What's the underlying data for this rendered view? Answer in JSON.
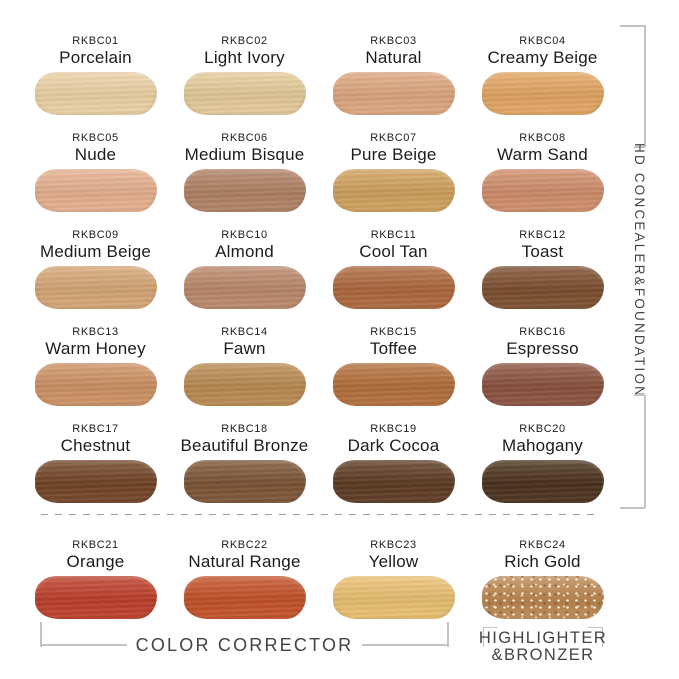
{
  "title_vertical": "HD CONCEALER&FOUNDATION",
  "groups": {
    "color_corrector": "COLOR CORRECTOR",
    "highlighter_line1": "HIGHLIGHTER",
    "highlighter_line2": "&BRONZER"
  },
  "swatches": [
    {
      "code": "RKBC01",
      "name": "Porcelain",
      "color": "#eed3a6",
      "group": "hd-concealer-foundation"
    },
    {
      "code": "RKBC02",
      "name": "Light Ivory",
      "color": "#e8cd9b",
      "group": "hd-concealer-foundation"
    },
    {
      "code": "RKBC03",
      "name": "Natural",
      "color": "#e0a87f",
      "group": "hd-concealer-foundation"
    },
    {
      "code": "RKBC04",
      "name": "Creamy Beige",
      "color": "#e5a763",
      "group": "hd-concealer-foundation"
    },
    {
      "code": "RKBC05",
      "name": "Nude",
      "color": "#e9b290",
      "group": "hd-concealer-foundation"
    },
    {
      "code": "RKBC06",
      "name": "Medium Bisque",
      "color": "#b28365",
      "group": "hd-concealer-foundation"
    },
    {
      "code": "RKBC07",
      "name": "Pure Beige",
      "color": "#d2a35e",
      "group": "hd-concealer-foundation"
    },
    {
      "code": "RKBC08",
      "name": "Warm Sand",
      "color": "#d28f6d",
      "group": "hd-concealer-foundation"
    },
    {
      "code": "RKBC09",
      "name": "Medium Beige",
      "color": "#d8a877",
      "group": "hd-concealer-foundation"
    },
    {
      "code": "RKBC10",
      "name": "Almond",
      "color": "#bd8a6c",
      "group": "hd-concealer-foundation"
    },
    {
      "code": "RKBC11",
      "name": "Cool Tan",
      "color": "#b0693f",
      "group": "hd-concealer-foundation"
    },
    {
      "code": "RKBC12",
      "name": "Toast",
      "color": "#7e5030",
      "group": "hd-concealer-foundation"
    },
    {
      "code": "RKBC13",
      "name": "Warm Honey",
      "color": "#d09365",
      "group": "hd-concealer-foundation"
    },
    {
      "code": "RKBC14",
      "name": "Fawn",
      "color": "#bc8c52",
      "group": "hd-concealer-foundation"
    },
    {
      "code": "RKBC15",
      "name": "Toffee",
      "color": "#b5713c",
      "group": "hd-concealer-foundation"
    },
    {
      "code": "RKBC16",
      "name": "Espresso",
      "color": "#8d5340",
      "group": "hd-concealer-foundation"
    },
    {
      "code": "RKBC17",
      "name": "Chestnut",
      "color": "#744528",
      "group": "hd-concealer-foundation"
    },
    {
      "code": "RKBC18",
      "name": "Beautiful Bronze",
      "color": "#7d5637",
      "group": "hd-concealer-foundation"
    },
    {
      "code": "RKBC19",
      "name": "Dark Cocoa",
      "color": "#5f3c24",
      "group": "hd-concealer-foundation"
    },
    {
      "code": "RKBC20",
      "name": "Mahogany",
      "color": "#4c331d",
      "group": "hd-concealer-foundation"
    },
    {
      "code": "RKBC21",
      "name": "Orange",
      "color": "#c0402c",
      "group": "color-corrector"
    },
    {
      "code": "RKBC22",
      "name": "Natural Range",
      "color": "#c6532a",
      "group": "color-corrector"
    },
    {
      "code": "RKBC23",
      "name": "Yellow",
      "color": "#edc272",
      "group": "color-corrector"
    },
    {
      "code": "RKBC24",
      "name": "Rich Gold",
      "color": "#bc8752, sparkle",
      "group": "highlighter-bronzer",
      "sparkle": true
    }
  ],
  "colors": {
    "bracket_line": "#c3c3c3",
    "dashed_line": "#9f9f9f",
    "label_text": "#1c1c1c",
    "group_text": "#434343"
  }
}
